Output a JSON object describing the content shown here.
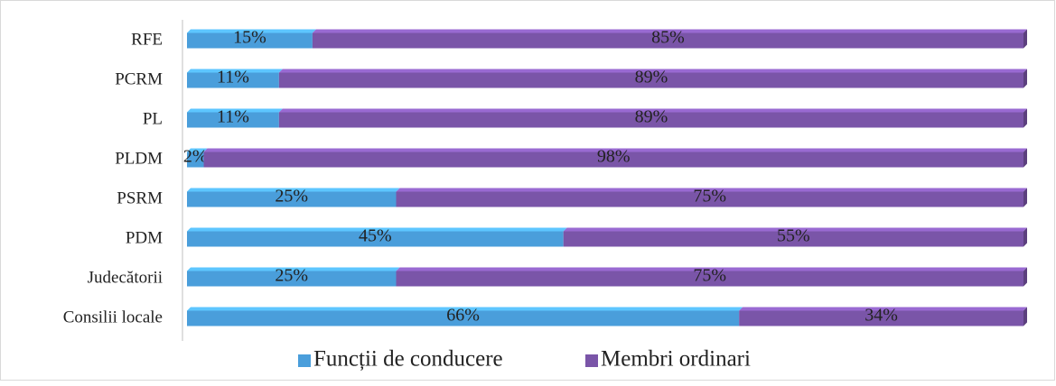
{
  "chart_data": {
    "type": "stacked-bar-horizontal",
    "categories": [
      "RFE",
      "PCRM",
      "PL",
      "PLDM",
      "PSRM",
      "PDM",
      "Judecătorii",
      "Consilii locale"
    ],
    "series": [
      {
        "name": "Funcții de conducere",
        "color": "#4a9edb",
        "values": [
          15,
          11,
          11,
          2,
          25,
          45,
          25,
          66
        ],
        "value_labels": [
          "15%",
          "11%",
          "11%",
          "2%",
          "25%",
          "45%",
          "25%",
          "66%"
        ]
      },
      {
        "name": "Membri ordinari",
        "color": "#7a55a8",
        "values": [
          85,
          89,
          89,
          98,
          75,
          55,
          75,
          34
        ],
        "value_labels": [
          "85%",
          "89%",
          "89%",
          "98%",
          "75%",
          "55%",
          "75%",
          "34%"
        ]
      }
    ],
    "xlim": [
      0,
      100
    ],
    "legend": "bottom"
  }
}
